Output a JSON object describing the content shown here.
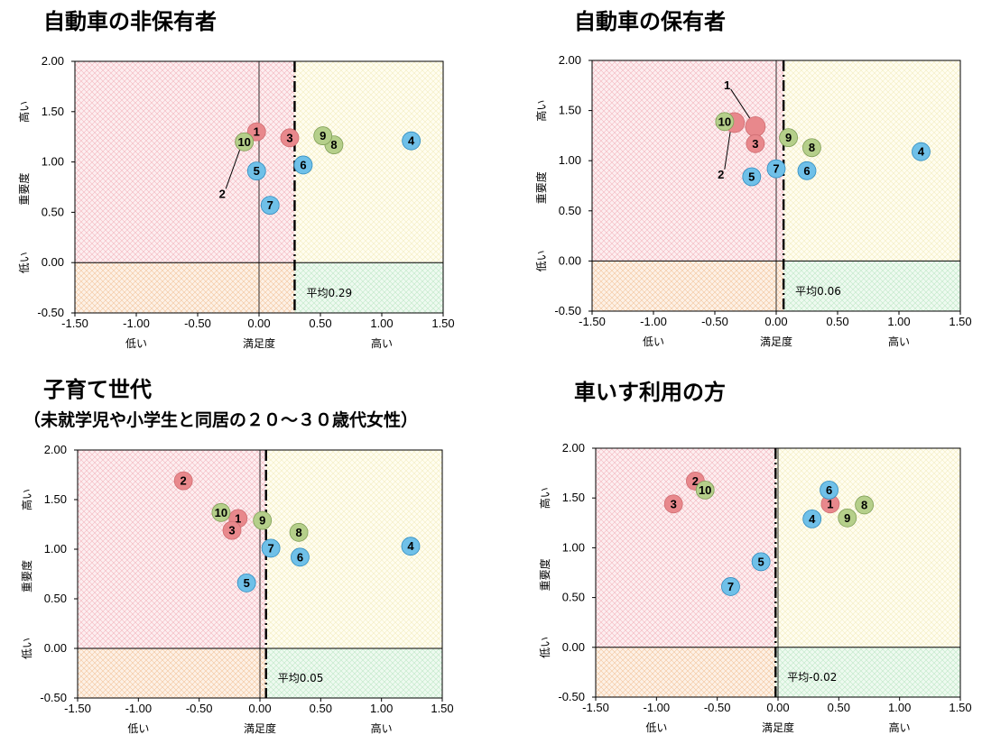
{
  "colors": {
    "red_quadrant": "#f4b8bf",
    "yellow_quadrant": "#faf3c0",
    "orange_quadrant": "#f6c59a",
    "green_quadrant": "#bfe9c6",
    "point_red": "#e8888c",
    "point_green": "#b5cf8a",
    "point_blue": "#6fc0e8"
  },
  "labels": {
    "y_high": "高い",
    "y_low": "低い",
    "y_axis": "重要度",
    "x_low": "低い",
    "x_axis": "満足度",
    "x_high": "高い"
  },
  "chart_data": [
    {
      "type": "scatter",
      "title": "自動車の非保有者",
      "subtitle": "",
      "xlim": [
        -1.5,
        1.5
      ],
      "ylim": [
        -0.5,
        2.0
      ],
      "x_ticks": [
        "-1.50",
        "-1.00",
        "-0.50",
        "0.00",
        "0.50",
        "1.00",
        "1.50"
      ],
      "y_ticks": [
        "-0.50",
        "0.00",
        "0.50",
        "1.00",
        "1.50",
        "2.00"
      ],
      "average_label": "平均0.29",
      "average_x": 0.29,
      "points": [
        {
          "label": "1",
          "x": -0.02,
          "y": 1.3,
          "group": "red"
        },
        {
          "label": "2",
          "x": -0.12,
          "y": 1.2,
          "group": "red"
        },
        {
          "label": "3",
          "x": 0.25,
          "y": 1.24,
          "group": "red"
        },
        {
          "label": "4",
          "x": 1.24,
          "y": 1.21,
          "group": "blue"
        },
        {
          "label": "5",
          "x": -0.02,
          "y": 0.91,
          "group": "blue"
        },
        {
          "label": "6",
          "x": 0.36,
          "y": 0.97,
          "group": "blue"
        },
        {
          "label": "7",
          "x": 0.09,
          "y": 0.57,
          "group": "blue"
        },
        {
          "label": "8",
          "x": 0.61,
          "y": 1.17,
          "group": "green"
        },
        {
          "label": "9",
          "x": 0.52,
          "y": 1.26,
          "group": "green"
        },
        {
          "label": "10",
          "x": -0.12,
          "y": 1.2,
          "group": "green"
        }
      ],
      "leaders": [
        {
          "label": "2",
          "x": -0.3,
          "y": 0.68
        }
      ]
    },
    {
      "type": "scatter",
      "title": "自動車の保有者",
      "subtitle": "",
      "xlim": [
        -1.5,
        1.5
      ],
      "ylim": [
        -0.5,
        2.0
      ],
      "x_ticks": [
        "-1.50",
        "-1.00",
        "-0.50",
        "0.00",
        "0.50",
        "1.00",
        "1.50"
      ],
      "y_ticks": [
        "-0.50",
        "0.00",
        "0.50",
        "1.00",
        "1.50",
        "2.00"
      ],
      "average_label": "平均0.06",
      "average_x": 0.06,
      "points": [
        {
          "label": "1",
          "x": -0.17,
          "y": 1.34,
          "group": "red"
        },
        {
          "label": "2",
          "x": -0.34,
          "y": 1.38,
          "group": "red"
        },
        {
          "label": "3",
          "x": -0.17,
          "y": 1.17,
          "group": "red"
        },
        {
          "label": "4",
          "x": 1.18,
          "y": 1.09,
          "group": "blue"
        },
        {
          "label": "5",
          "x": -0.2,
          "y": 0.84,
          "group": "blue"
        },
        {
          "label": "6",
          "x": 0.25,
          "y": 0.9,
          "group": "blue"
        },
        {
          "label": "7",
          "x": 0.0,
          "y": 0.92,
          "group": "blue"
        },
        {
          "label": "8",
          "x": 0.29,
          "y": 1.13,
          "group": "green"
        },
        {
          "label": "9",
          "x": 0.1,
          "y": 1.23,
          "group": "green"
        },
        {
          "label": "10",
          "x": -0.42,
          "y": 1.39,
          "group": "green"
        }
      ],
      "leaders": [
        {
          "label": "1",
          "x": -0.4,
          "y": 1.75
        },
        {
          "label": "2",
          "x": -0.45,
          "y": 0.86
        }
      ]
    },
    {
      "type": "scatter",
      "title": "子育て世代",
      "subtitle": "（未就学児や小学生と同居の２０～３０歳代女性）",
      "xlim": [
        -1.5,
        1.5
      ],
      "ylim": [
        -0.5,
        2.0
      ],
      "x_ticks": [
        "-1.50",
        "-1.00",
        "-0.50",
        "0.00",
        "0.50",
        "1.00",
        "1.50"
      ],
      "y_ticks": [
        "-0.50",
        "0.00",
        "0.50",
        "1.00",
        "1.50",
        "2.00"
      ],
      "average_label": "平均0.05",
      "average_x": 0.05,
      "points": [
        {
          "label": "1",
          "x": -0.18,
          "y": 1.31,
          "group": "red"
        },
        {
          "label": "2",
          "x": -0.63,
          "y": 1.69,
          "group": "red"
        },
        {
          "label": "3",
          "x": -0.23,
          "y": 1.19,
          "group": "red"
        },
        {
          "label": "4",
          "x": 1.24,
          "y": 1.03,
          "group": "blue"
        },
        {
          "label": "5",
          "x": -0.11,
          "y": 0.66,
          "group": "blue"
        },
        {
          "label": "6",
          "x": 0.33,
          "y": 0.92,
          "group": "blue"
        },
        {
          "label": "7",
          "x": 0.09,
          "y": 1.01,
          "group": "blue"
        },
        {
          "label": "8",
          "x": 0.32,
          "y": 1.17,
          "group": "green"
        },
        {
          "label": "9",
          "x": 0.02,
          "y": 1.29,
          "group": "green"
        },
        {
          "label": "10",
          "x": -0.32,
          "y": 1.37,
          "group": "green"
        }
      ],
      "leaders": []
    },
    {
      "type": "scatter",
      "title": "車いす利用の方",
      "subtitle": "",
      "xlim": [
        -1.5,
        1.5
      ],
      "ylim": [
        -0.5,
        2.0
      ],
      "x_ticks": [
        "-1.50",
        "-1.00",
        "-0.50",
        "0.00",
        "0.50",
        "1.00",
        "1.50"
      ],
      "y_ticks": [
        "-0.50",
        "0.00",
        "0.50",
        "1.00",
        "1.50",
        "2.00"
      ],
      "average_label": "平均-0.02",
      "average_x": -0.02,
      "points": [
        {
          "label": "1",
          "x": 0.43,
          "y": 1.44,
          "group": "red"
        },
        {
          "label": "2",
          "x": -0.68,
          "y": 1.67,
          "group": "red"
        },
        {
          "label": "3",
          "x": -0.86,
          "y": 1.44,
          "group": "red"
        },
        {
          "label": "4",
          "x": 0.28,
          "y": 1.29,
          "group": "blue"
        },
        {
          "label": "5",
          "x": -0.14,
          "y": 0.86,
          "group": "blue"
        },
        {
          "label": "6",
          "x": 0.42,
          "y": 1.58,
          "group": "blue"
        },
        {
          "label": "7",
          "x": -0.39,
          "y": 0.61,
          "group": "blue"
        },
        {
          "label": "8",
          "x": 0.71,
          "y": 1.43,
          "group": "green"
        },
        {
          "label": "9",
          "x": 0.57,
          "y": 1.3,
          "group": "green"
        },
        {
          "label": "10",
          "x": -0.6,
          "y": 1.58,
          "group": "green"
        }
      ],
      "leaders": []
    }
  ]
}
